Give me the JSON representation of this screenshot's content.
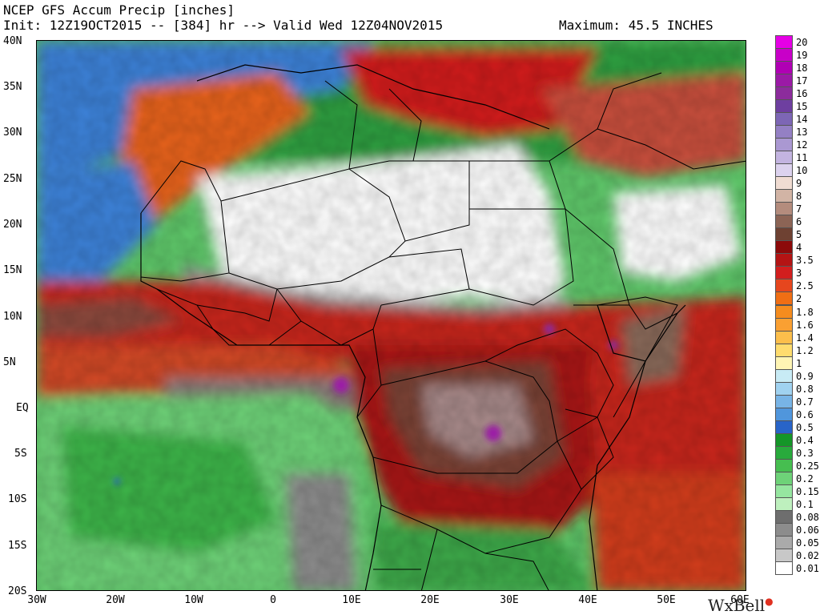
{
  "header": {
    "title": "NCEP GFS Accum Precip [inches]",
    "init_line": "Init: 12Z19OCT2015 -- [384] hr --> Valid Wed 12Z04NOV2015",
    "maximum": "Maximum: 45.5 INCHES"
  },
  "lat_labels": [
    "40N",
    "35N",
    "30N",
    "25N",
    "20N",
    "15N",
    "10N",
    "5N",
    "EQ",
    "5S",
    "10S",
    "15S",
    "20S"
  ],
  "lon_labels": [
    "30W",
    "20W",
    "10W",
    "0",
    "10E",
    "20E",
    "30E",
    "40E",
    "50E",
    "60E"
  ],
  "brand": "WxBell",
  "colorbar": [
    {
      "label": "20",
      "color": "#e600e6"
    },
    {
      "label": "19",
      "color": "#c800c8"
    },
    {
      "label": "18",
      "color": "#b000b4"
    },
    {
      "label": "17",
      "color": "#9b1aa6"
    },
    {
      "label": "16",
      "color": "#8c2c9c"
    },
    {
      "label": "15",
      "color": "#6e3fa0"
    },
    {
      "label": "14",
      "color": "#7d66b5"
    },
    {
      "label": "13",
      "color": "#9480c4"
    },
    {
      "label": "12",
      "color": "#aa98d2"
    },
    {
      "label": "11",
      "color": "#c3b4e0"
    },
    {
      "label": "10",
      "color": "#dcd2ee"
    },
    {
      "label": "9",
      "color": "#f0dcd2"
    },
    {
      "label": "8",
      "color": "#d2b4a5"
    },
    {
      "label": "7",
      "color": "#b48c7d"
    },
    {
      "label": "6",
      "color": "#8c6455"
    },
    {
      "label": "5",
      "color": "#6e4132"
    },
    {
      "label": "4",
      "color": "#8c0a0a"
    },
    {
      "label": "3.5",
      "color": "#b41414"
    },
    {
      "label": "3",
      "color": "#d21e1e"
    },
    {
      "label": "2.5",
      "color": "#e6461e"
    },
    {
      "label": "2",
      "color": "#f06e14"
    },
    {
      "label": "1.8",
      "color": "#f58c1e"
    },
    {
      "label": "1.6",
      "color": "#faa032"
    },
    {
      "label": "1.4",
      "color": "#fcbe4b"
    },
    {
      "label": "1.2",
      "color": "#ffdc6e"
    },
    {
      "label": "1",
      "color": "#fff5b4"
    },
    {
      "label": "0.9",
      "color": "#c8ebf5"
    },
    {
      "label": "0.8",
      "color": "#a0d2f0"
    },
    {
      "label": "0.7",
      "color": "#78b4e6"
    },
    {
      "label": "0.6",
      "color": "#5096dc"
    },
    {
      "label": "0.5",
      "color": "#2864c8"
    },
    {
      "label": "0.4",
      "color": "#149628"
    },
    {
      "label": "0.3",
      "color": "#28aa3c"
    },
    {
      "label": "0.25",
      "color": "#46be50"
    },
    {
      "label": "0.2",
      "color": "#6ed278"
    },
    {
      "label": "0.15",
      "color": "#96e6a0"
    },
    {
      "label": "0.1",
      "color": "#bef0be"
    },
    {
      "label": "0.08",
      "color": "#6e6e6e"
    },
    {
      "label": "0.06",
      "color": "#8c8c8c"
    },
    {
      "label": "0.05",
      "color": "#aaaaaa"
    },
    {
      "label": "0.02",
      "color": "#c8c8c8"
    },
    {
      "label": "0.01",
      "color": "#ffffff"
    }
  ]
}
